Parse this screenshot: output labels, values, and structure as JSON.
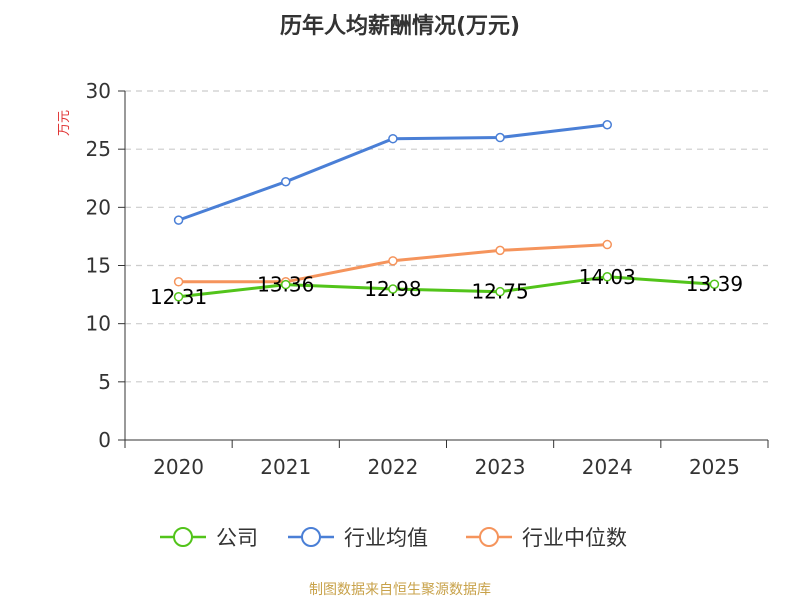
{
  "chart_data": {
    "type": "line",
    "title": "历年人均薪酬情况(万元)",
    "ylabel": "万元",
    "xlabel": "",
    "ylim": [
      0,
      30
    ],
    "yticks": [
      0,
      5,
      10,
      15,
      20,
      25,
      30
    ],
    "grid": true,
    "legend_position": "bottom",
    "categories": [
      "2020",
      "2021",
      "2022",
      "2023",
      "2024",
      "2025"
    ],
    "series": [
      {
        "name": "公司",
        "color": "#52c41a",
        "values": [
          12.31,
          13.36,
          12.98,
          12.75,
          14.03,
          13.39
        ],
        "labels": [
          "12.31",
          "13.36",
          "12.98",
          "12.75",
          "14.03",
          "13.39"
        ]
      },
      {
        "name": "行业均值",
        "color": "#4a7fd6",
        "values": [
          18.9,
          22.2,
          25.9,
          26.0,
          27.1,
          null
        ]
      },
      {
        "name": "行业中位数",
        "color": "#f5945c",
        "values": [
          13.6,
          13.6,
          15.4,
          16.3,
          16.8,
          null
        ]
      }
    ]
  },
  "source": "制图数据来自恒生聚源数据库"
}
